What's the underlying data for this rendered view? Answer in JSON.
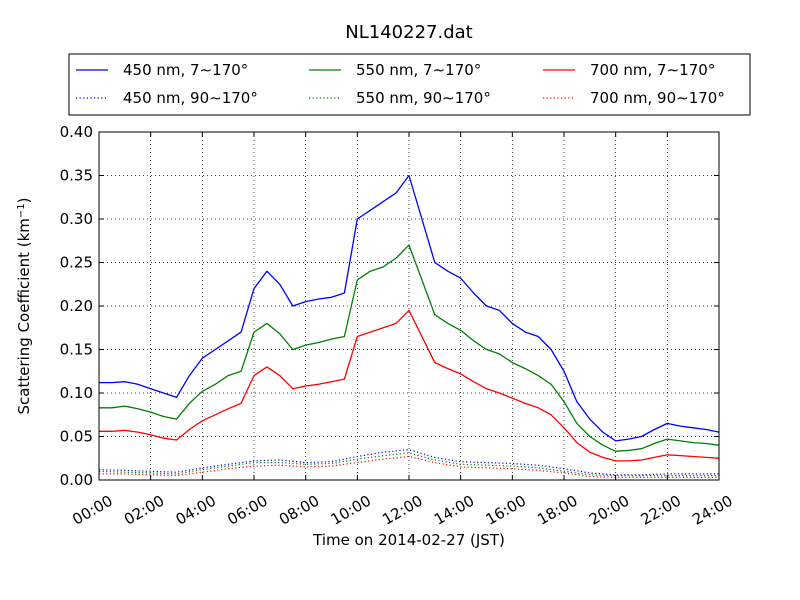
{
  "chart_data": {
    "type": "line",
    "title": "NL140227.dat",
    "xlabel": "Time on 2014-02-27 (JST)",
    "ylabel": "Scattering Coefficient (km",
    "ylabel_sup": "−1",
    "ylabel_end": ")",
    "xlim": [
      0,
      24
    ],
    "ylim": [
      0,
      0.4
    ],
    "x_ticks": [
      0,
      2,
      4,
      6,
      8,
      10,
      12,
      14,
      16,
      18,
      20,
      22,
      24
    ],
    "x_tick_labels": [
      "00:00",
      "02:00",
      "04:00",
      "06:00",
      "08:00",
      "10:00",
      "12:00",
      "14:00",
      "16:00",
      "18:00",
      "20:00",
      "22:00",
      "24:00"
    ],
    "y_ticks": [
      0,
      0.05,
      0.1,
      0.15,
      0.2,
      0.25,
      0.3,
      0.35,
      0.4
    ],
    "y_tick_labels": [
      "0.00",
      "0.05",
      "0.10",
      "0.15",
      "0.20",
      "0.25",
      "0.30",
      "0.35",
      "0.40"
    ],
    "grid": true,
    "legend_placement": "top, above plot, 3 columns",
    "series": [
      {
        "name": "450 nm, 7∼170°",
        "color": "#0000ff",
        "style": "solid",
        "x": [
          0,
          0.5,
          1,
          1.5,
          2,
          2.5,
          3,
          3.5,
          4,
          4.5,
          5,
          5.5,
          6,
          6.5,
          7,
          7.5,
          8,
          8.5,
          9,
          9.5,
          10,
          10.5,
          11,
          11.5,
          12,
          12.5,
          13,
          13.5,
          14,
          14.5,
          15,
          15.5,
          16,
          16.5,
          17,
          17.5,
          18,
          18.5,
          19,
          19.5,
          20,
          20.5,
          21,
          21.5,
          22,
          22.5,
          23,
          23.5,
          24
        ],
        "y": [
          0.112,
          0.112,
          0.113,
          0.11,
          0.105,
          0.1,
          0.095,
          0.12,
          0.14,
          0.15,
          0.16,
          0.17,
          0.22,
          0.24,
          0.225,
          0.2,
          0.205,
          0.208,
          0.21,
          0.215,
          0.3,
          0.31,
          0.32,
          0.33,
          0.35,
          0.3,
          0.25,
          0.24,
          0.232,
          0.215,
          0.2,
          0.195,
          0.18,
          0.17,
          0.165,
          0.15,
          0.125,
          0.09,
          0.07,
          0.055,
          0.045,
          0.047,
          0.05,
          0.058,
          0.065,
          0.062,
          0.06,
          0.058,
          0.055
        ]
      },
      {
        "name": "550 nm, 7∼170°",
        "color": "#008000",
        "style": "solid",
        "x": [
          0,
          0.5,
          1,
          1.5,
          2,
          2.5,
          3,
          3.5,
          4,
          4.5,
          5,
          5.5,
          6,
          6.5,
          7,
          7.5,
          8,
          8.5,
          9,
          9.5,
          10,
          10.5,
          11,
          11.5,
          12,
          12.5,
          13,
          13.5,
          14,
          14.5,
          15,
          15.5,
          16,
          16.5,
          17,
          17.5,
          18,
          18.5,
          19,
          19.5,
          20,
          20.5,
          21,
          21.5,
          22,
          22.5,
          23,
          23.5,
          24
        ],
        "y": [
          0.083,
          0.083,
          0.085,
          0.082,
          0.078,
          0.073,
          0.07,
          0.088,
          0.102,
          0.11,
          0.12,
          0.125,
          0.17,
          0.18,
          0.168,
          0.15,
          0.155,
          0.158,
          0.162,
          0.165,
          0.23,
          0.24,
          0.245,
          0.255,
          0.27,
          0.23,
          0.19,
          0.18,
          0.172,
          0.16,
          0.15,
          0.145,
          0.135,
          0.128,
          0.12,
          0.11,
          0.09,
          0.065,
          0.05,
          0.04,
          0.033,
          0.034,
          0.036,
          0.042,
          0.047,
          0.045,
          0.043,
          0.042,
          0.04
        ]
      },
      {
        "name": "700 nm, 7∼170°",
        "color": "#ff0000",
        "style": "solid",
        "x": [
          0,
          0.5,
          1,
          1.5,
          2,
          2.5,
          3,
          3.5,
          4,
          4.5,
          5,
          5.5,
          6,
          6.5,
          7,
          7.5,
          8,
          8.5,
          9,
          9.5,
          10,
          10.5,
          11,
          11.5,
          12,
          12.5,
          13,
          13.5,
          14,
          14.5,
          15,
          15.5,
          16,
          16.5,
          17,
          17.5,
          18,
          18.5,
          19,
          19.5,
          20,
          20.5,
          21,
          21.5,
          22,
          22.5,
          23,
          23.5,
          24
        ],
        "y": [
          0.056,
          0.056,
          0.057,
          0.055,
          0.052,
          0.048,
          0.046,
          0.058,
          0.068,
          0.075,
          0.082,
          0.088,
          0.12,
          0.13,
          0.12,
          0.105,
          0.108,
          0.11,
          0.113,
          0.116,
          0.165,
          0.17,
          0.175,
          0.18,
          0.195,
          0.165,
          0.135,
          0.128,
          0.122,
          0.113,
          0.105,
          0.1,
          0.094,
          0.088,
          0.083,
          0.075,
          0.06,
          0.043,
          0.032,
          0.026,
          0.022,
          0.022,
          0.023,
          0.026,
          0.029,
          0.028,
          0.027,
          0.026,
          0.025
        ]
      },
      {
        "name": "450 nm, 90∼170°",
        "color": "#0000ff",
        "style": "dotted",
        "x": [
          0,
          1,
          2,
          3,
          4,
          5,
          6,
          7,
          8,
          9,
          10,
          11,
          12,
          13,
          14,
          15,
          16,
          17,
          18,
          19,
          20,
          21,
          22,
          23,
          24
        ],
        "y": [
          0.012,
          0.011,
          0.01,
          0.009,
          0.014,
          0.018,
          0.022,
          0.023,
          0.02,
          0.021,
          0.027,
          0.032,
          0.035,
          0.026,
          0.021,
          0.02,
          0.019,
          0.017,
          0.013,
          0.008,
          0.006,
          0.006,
          0.007,
          0.007,
          0.007
        ]
      },
      {
        "name": "550 nm, 90∼170°",
        "color": "#008000",
        "style": "dotted",
        "x": [
          0,
          1,
          2,
          3,
          4,
          5,
          6,
          7,
          8,
          9,
          10,
          11,
          12,
          13,
          14,
          15,
          16,
          17,
          18,
          19,
          20,
          21,
          22,
          23,
          24
        ],
        "y": [
          0.01,
          0.009,
          0.008,
          0.007,
          0.012,
          0.016,
          0.02,
          0.02,
          0.018,
          0.019,
          0.024,
          0.028,
          0.031,
          0.023,
          0.018,
          0.017,
          0.016,
          0.014,
          0.01,
          0.006,
          0.005,
          0.005,
          0.005,
          0.005,
          0.005
        ]
      },
      {
        "name": "700 nm, 90∼170°",
        "color": "#ff0000",
        "style": "dotted",
        "x": [
          0,
          1,
          2,
          3,
          4,
          5,
          6,
          7,
          8,
          9,
          10,
          11,
          12,
          13,
          14,
          15,
          16,
          17,
          18,
          19,
          20,
          21,
          22,
          23,
          24
        ],
        "y": [
          0.007,
          0.007,
          0.006,
          0.005,
          0.009,
          0.013,
          0.016,
          0.017,
          0.015,
          0.016,
          0.02,
          0.024,
          0.027,
          0.02,
          0.015,
          0.014,
          0.013,
          0.011,
          0.008,
          0.004,
          0.003,
          0.003,
          0.003,
          0.003,
          0.003
        ]
      }
    ]
  }
}
